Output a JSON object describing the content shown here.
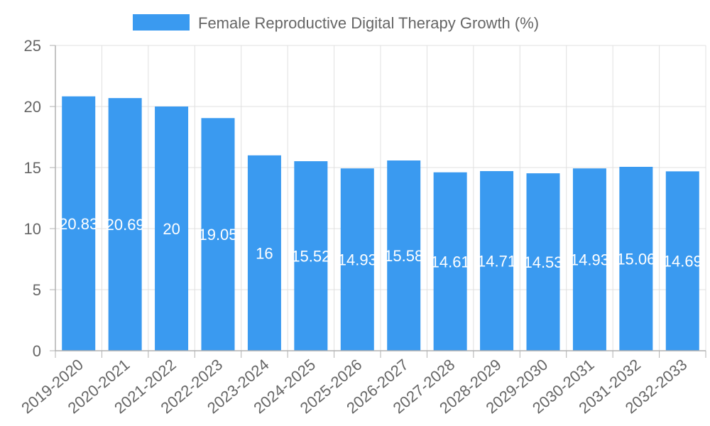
{
  "chart_data": {
    "type": "bar",
    "categories": [
      "2019-2020",
      "2020-2021",
      "2021-2022",
      "2022-2023",
      "2023-2024",
      "2024-2025",
      "2025-2026",
      "2026-2027",
      "2027-2028",
      "2028-2029",
      "2029-2030",
      "2030-2031",
      "2031-2032",
      "2032-2033"
    ],
    "series": [
      {
        "name": "Female Reproductive Digital Therapy Growth (%)",
        "values": [
          20.83,
          20.69,
          20,
          19.05,
          16,
          15.52,
          14.93,
          15.58,
          14.61,
          14.71,
          14.53,
          14.93,
          15.06,
          14.69
        ],
        "labels": [
          "20.83",
          "20.69",
          "20",
          "19.05",
          "16",
          "15.52",
          "14.93",
          "15.58",
          "14.61",
          "14.71",
          "14.53",
          "14.93",
          "15.06",
          "14.69"
        ]
      }
    ],
    "ylim": [
      0,
      25
    ],
    "yticks": [
      "0",
      "5",
      "10",
      "15",
      "20",
      "25"
    ],
    "grid": true,
    "legend_position": "top-center",
    "colors": {
      "bar": "#3a9af0",
      "grid": "#e0e0e0",
      "axis": "#b0b0b0",
      "text": "#666666"
    }
  }
}
